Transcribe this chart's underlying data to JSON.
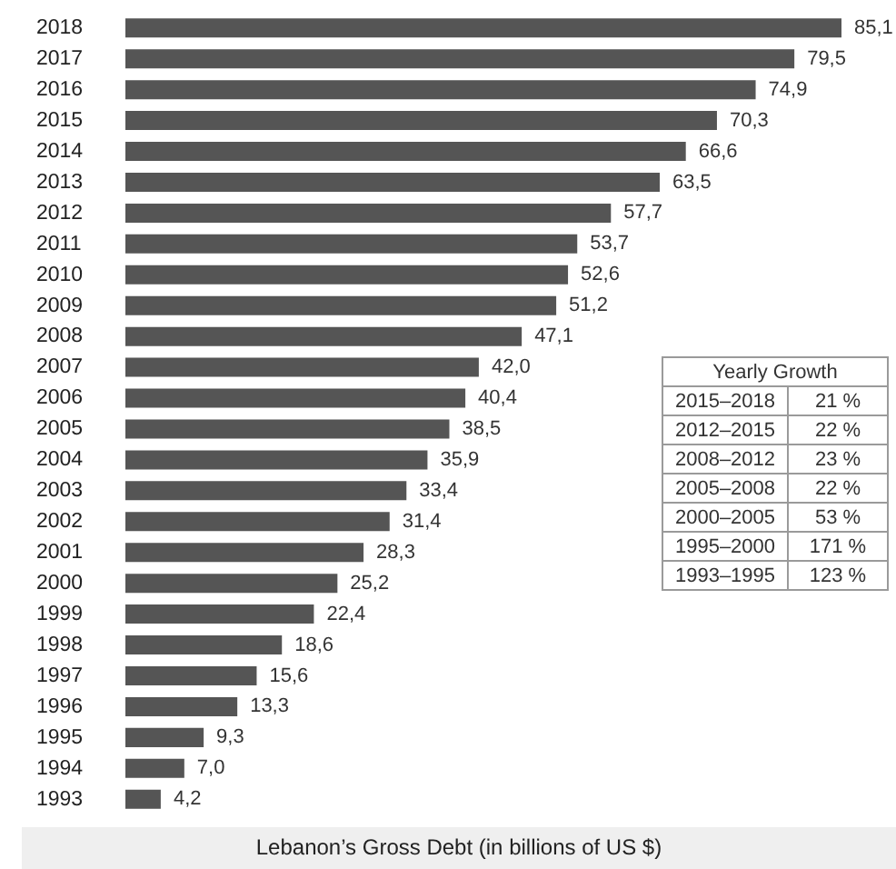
{
  "chart_data": [
    {
      "type": "bar",
      "orientation": "horizontal",
      "title": "Lebanon’s Gross Debt (in billions of US $)",
      "categories": [
        "2018",
        "2017",
        "2016",
        "2015",
        "2014",
        "2013",
        "2012",
        "2011",
        "2010",
        "2009",
        "2008",
        "2007",
        "2006",
        "2005",
        "2004",
        "2003",
        "2002",
        "2001",
        "2000",
        "1999",
        "1998",
        "1997",
        "1996",
        "1995",
        "1994",
        "1993"
      ],
      "values": [
        85.1,
        79.5,
        74.9,
        70.3,
        66.6,
        63.5,
        57.7,
        53.7,
        52.6,
        51.2,
        47.1,
        42.0,
        40.4,
        38.5,
        35.9,
        33.4,
        31.4,
        28.3,
        25.2,
        22.4,
        18.6,
        15.6,
        13.3,
        9.3,
        7.0,
        4.2
      ],
      "value_labels": [
        "85,1",
        "79,5",
        "74,9",
        "70,3",
        "66,6",
        "63,5",
        "57,7",
        "53,7",
        "52,6",
        "51,2",
        "47,1",
        "42,0",
        "40,4",
        "38,5",
        "35,9",
        "33,4",
        "31,4",
        "28,3",
        "25,2",
        "22,4",
        "18,6",
        "15,6",
        "13,3",
        "9,3",
        "7,0",
        "4,2"
      ],
      "color": "#555555",
      "tick_labels": "y"
    },
    {
      "type": "other",
      "title": "Yearly Growth",
      "categories": [
        "2015–2018",
        "2012–2015",
        "2008–2012",
        "2005–2008",
        "2000–2005",
        "1995–2000",
        "1993–1995"
      ],
      "values": [
        21,
        22,
        23,
        22,
        53,
        171,
        123
      ],
      "value_labels": [
        "21 %",
        "22 %",
        "23 %",
        "22 %",
        "53 %",
        "171 %",
        "123 %"
      ]
    }
  ]
}
